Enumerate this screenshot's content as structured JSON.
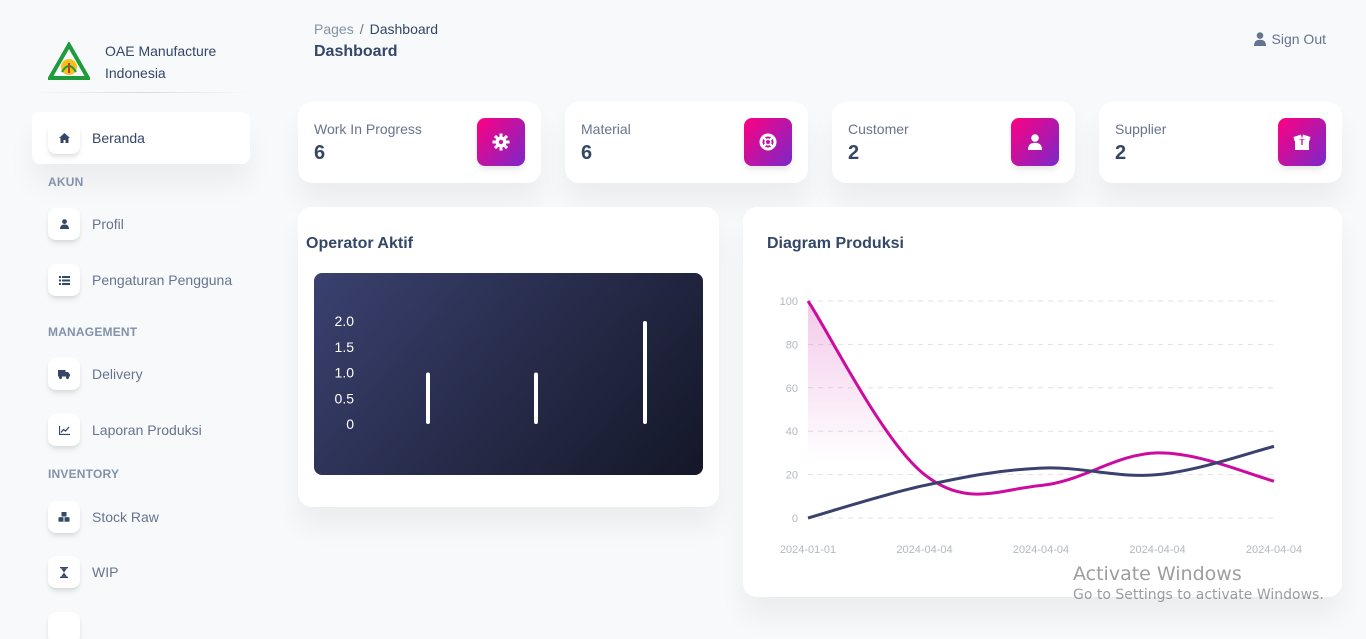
{
  "brand": {
    "name_line1": "OAE Manufacture",
    "name_line2": "Indonesia"
  },
  "sidebar": {
    "items": [
      {
        "label": "Beranda",
        "icon": "home-icon",
        "active": true
      },
      {
        "label": "Profil",
        "icon": "user-icon"
      },
      {
        "label": "Pengaturan Pengguna",
        "icon": "list-icon"
      },
      {
        "label": "Delivery",
        "icon": "truck-icon"
      },
      {
        "label": "Laporan Produksi",
        "icon": "chart-line-icon"
      },
      {
        "label": "Stock Raw",
        "icon": "cubes-icon"
      },
      {
        "label": "WIP",
        "icon": "hourglass-icon"
      }
    ],
    "sections": {
      "akun": "AKUN",
      "management": "MANAGEMENT",
      "inventory": "INVENTORY"
    }
  },
  "header": {
    "breadcrumb_parent": "Pages",
    "breadcrumb_separator": "/",
    "breadcrumb_current": "Dashboard",
    "title": "Dashboard",
    "signout_label": "Sign Out"
  },
  "stats": [
    {
      "label": "Work In Progress",
      "value": "6",
      "icon": "gear-icon"
    },
    {
      "label": "Material",
      "value": "6",
      "icon": "life-ring-icon"
    },
    {
      "label": "Customer",
      "value": "2",
      "icon": "user-icon"
    },
    {
      "label": "Supplier",
      "value": "2",
      "icon": "box-open-icon"
    }
  ],
  "operator_card": {
    "title": "Operator Aktif"
  },
  "production_card": {
    "title": "Diagram Produksi"
  },
  "colors": {
    "accent_gradient_start": "#7928ca",
    "accent_gradient_end": "#ff0080",
    "dark_gradient_start": "#3a416f",
    "dark_gradient_end": "#141727",
    "series_magenta": "#cb0c9f",
    "series_navy": "#3a416f"
  },
  "chart_data": [
    {
      "type": "bar",
      "categories": [
        "",
        "",
        ""
      ],
      "values": [
        1,
        1,
        2
      ],
      "ylim": [
        0,
        2
      ],
      "yticks": [
        "2.0",
        "1.5",
        "1.0",
        "0.5",
        "0"
      ]
    },
    {
      "type": "line",
      "x": [
        "2024-01-01",
        "2024-04-04",
        "2024-04-04",
        "2024-04-04",
        "2024-04-04"
      ],
      "xticks": [
        "2024-01-01",
        "2024-04-04",
        "2024-04-04",
        "2024-04-04",
        "2024-04-04"
      ],
      "ylim": [
        0,
        100
      ],
      "yticks": [
        "100",
        "80",
        "60",
        "40",
        "20",
        "0"
      ],
      "grid": true,
      "series": [
        {
          "values": [
            100,
            20,
            15,
            30,
            17
          ],
          "color": "#cb0c9f",
          "fill": true
        },
        {
          "values": [
            0,
            15,
            23,
            20,
            33
          ],
          "color": "#3a416f"
        }
      ]
    }
  ],
  "watermark": {
    "title": "Activate Windows",
    "subtitle": "Go to Settings to activate Windows."
  }
}
